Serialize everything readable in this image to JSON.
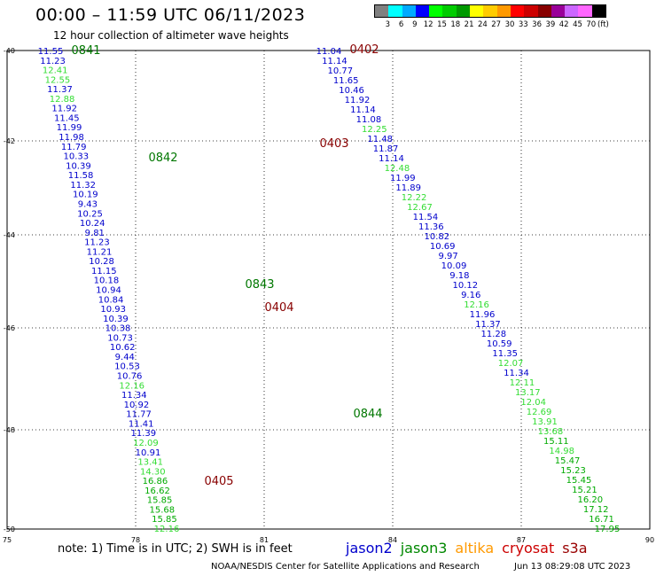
{
  "header": {
    "title": "00:00 – 11:59 UTC 06/11/2023",
    "subtitle": "12 hour collection of altimeter wave heights"
  },
  "legend": {
    "colors": [
      "#808080",
      "#00ffff",
      "#00aaff",
      "#0000ff",
      "#00ff00",
      "#00cc00",
      "#009900",
      "#ffff00",
      "#ffcc00",
      "#ff9900",
      "#ff0000",
      "#cc0000",
      "#880000",
      "#990099",
      "#cc66ff",
      "#ff66ff",
      "#000000"
    ],
    "labels": [
      "3",
      "6",
      "9",
      "12",
      "15",
      "18",
      "21",
      "24",
      "27",
      "30",
      "33",
      "36",
      "39",
      "42",
      "45",
      "70",
      "(ft)"
    ]
  },
  "map": {
    "lon_ticks": [
      "75",
      "78",
      "81",
      "84",
      "87",
      "90"
    ],
    "lat_ticks": [
      "-40",
      "-42",
      "-44",
      "-46",
      "-48",
      "-50"
    ],
    "pass_times": [
      {
        "text": "0841",
        "color": "#007700"
      },
      {
        "text": "0842",
        "color": "#007700"
      },
      {
        "text": "0843",
        "color": "#007700"
      },
      {
        "text": "0844",
        "color": "#007700"
      },
      {
        "text": "0402",
        "color": "#880000"
      },
      {
        "text": "0403",
        "color": "#880000"
      },
      {
        "text": "0404",
        "color": "#880000"
      },
      {
        "text": "0405",
        "color": "#880000"
      }
    ],
    "track_a": [
      "11.55",
      "11.23",
      "12.41",
      "12.55",
      "11.37",
      "12.88",
      "11.92",
      "11.45",
      "11.99",
      "11.98",
      "11.79",
      "10.33",
      "10.39",
      "11.58",
      "11.32",
      "10.19",
      "9.43",
      "10.25",
      "10.24",
      "9.81",
      "11.23",
      "11.21",
      "10.28",
      "11.15",
      "10.18",
      "10.94",
      "10.84",
      "10.93",
      "10.39",
      "10.38",
      "10.73",
      "10.62",
      "9.44",
      "10.53",
      "10.76",
      "12.16",
      "11.34",
      "10.92",
      "11.77",
      "11.41",
      "11.39",
      "12.09",
      "10.91",
      "13.41",
      "14.30",
      "16.86",
      "16.62",
      "15.85",
      "15.68",
      "15.85",
      "12.16"
    ],
    "track_b": [
      "11.04",
      "11.14",
      "10.77",
      "11.65",
      "10.46",
      "11.92",
      "11.14",
      "11.08",
      "12.25",
      "11.48",
      "11.87",
      "11.14",
      "12.48",
      "11.99",
      "11.89",
      "12.22",
      "12.67",
      "11.54",
      "11.36",
      "10.82",
      "10.69",
      "9.97",
      "10.09",
      "9.18",
      "10.12",
      "9.16",
      "12.16",
      "11.96",
      "11.37",
      "11.28",
      "10.59",
      "11.35",
      "12.07",
      "11.34",
      "12.11",
      "13.17",
      "12.04",
      "12.69",
      "13.91",
      "13.68",
      "15.11",
      "14.98",
      "15.47",
      "15.23",
      "15.45",
      "15.21",
      "16.20",
      "17.12",
      "16.71",
      "17.95"
    ]
  },
  "note": "note:  1) Time is in UTC;  2) SWH is in feet",
  "satellites": [
    {
      "name": "jason2",
      "color": "#0000cc"
    },
    {
      "name": "jason3",
      "color": "#008800"
    },
    {
      "name": "altika",
      "color": "#ff9900"
    },
    {
      "name": "cryosat",
      "color": "#cc0000"
    },
    {
      "name": "s3a",
      "color": "#990000"
    }
  ],
  "credit": "NOAA/NESDIS Center for Satellite Applications and Research",
  "updated": "Jun 13 08:29:08 UTC 2023"
}
